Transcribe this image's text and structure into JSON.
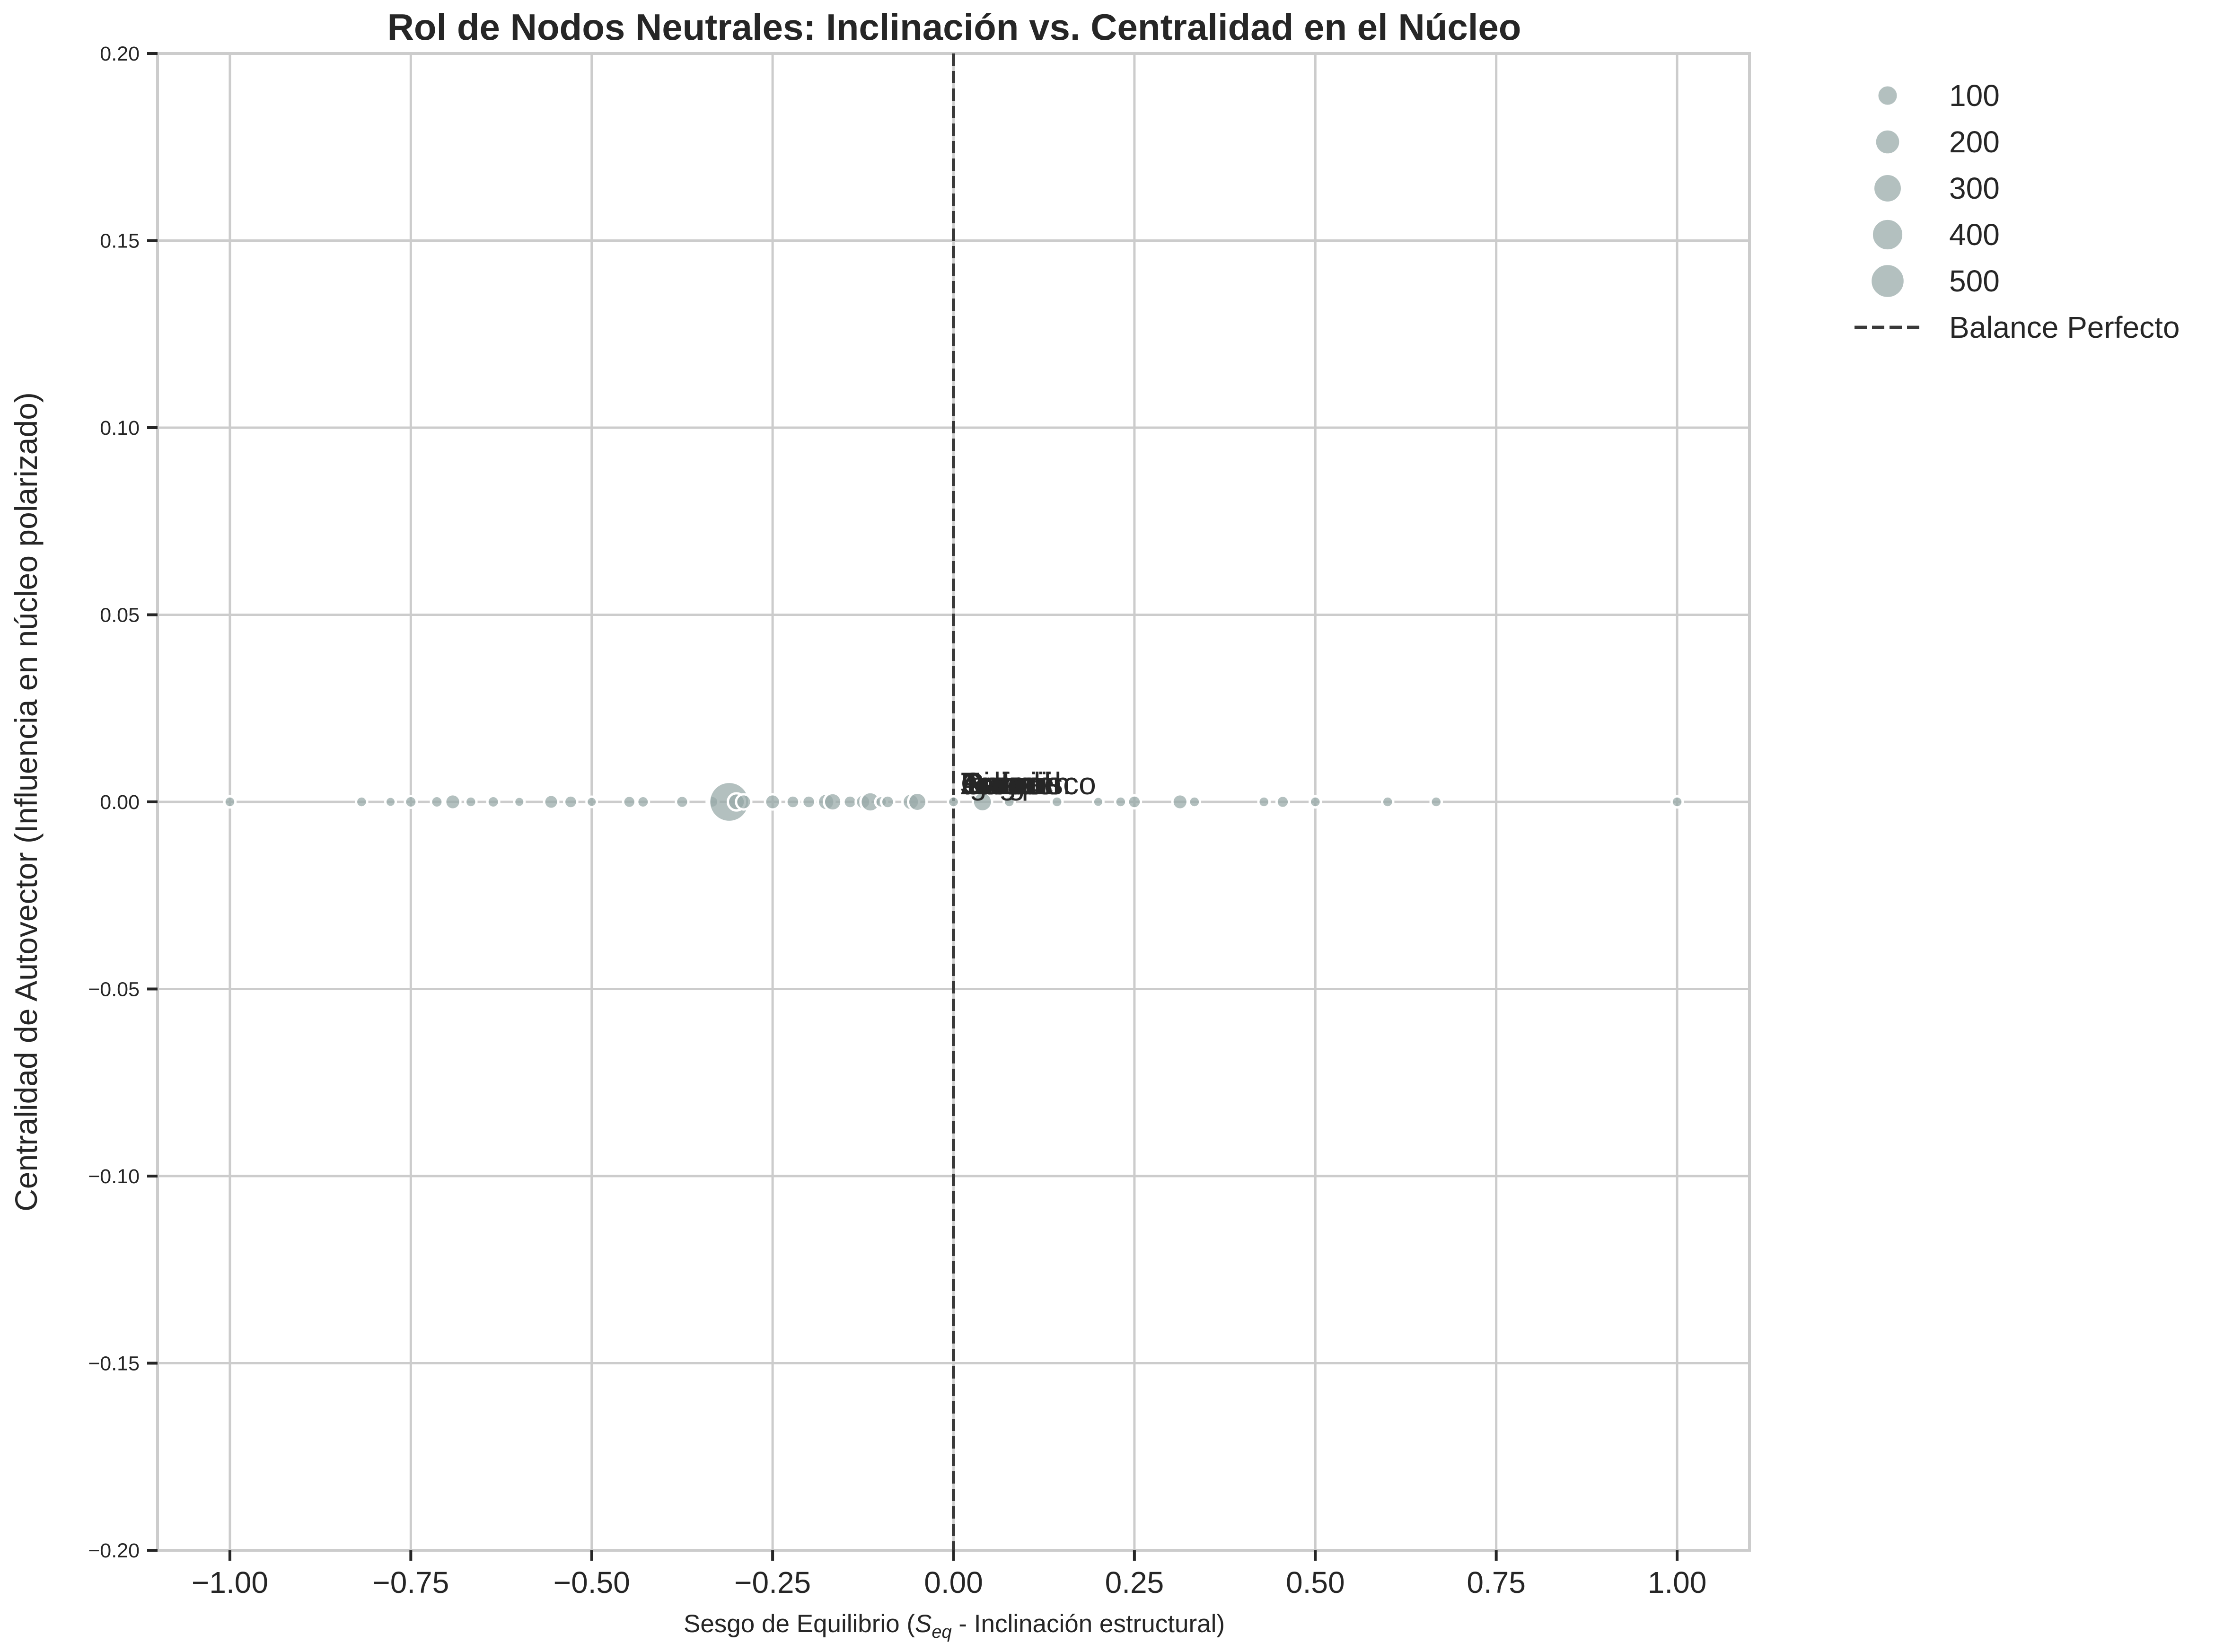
{
  "chart_data": {
    "type": "scatter",
    "title": "Rol de Nodos Neutrales: Inclinación vs. Centralidad en el Núcleo",
    "xlabel_parts": [
      "Sesgo de Equilibrio (",
      "S",
      "eq",
      " - Inclinación estructural)"
    ],
    "ylabel": "Centralidad de Autovector (Influencia en núcleo polarizado)",
    "xlim": [
      -1.1,
      1.1
    ],
    "ylim": [
      -0.2,
      0.2
    ],
    "xticks": [
      -1.0,
      -0.75,
      -0.5,
      -0.25,
      0.0,
      0.25,
      0.5,
      0.75,
      1.0
    ],
    "xtick_labels": [
      "−1.00",
      "−0.75",
      "−0.50",
      "−0.25",
      "0.00",
      "0.25",
      "0.50",
      "0.75",
      "1.00"
    ],
    "yticks": [
      -0.2,
      -0.15,
      -0.1,
      -0.05,
      0.0,
      0.05,
      0.1,
      0.15,
      0.2
    ],
    "ytick_labels": [
      "−0.20",
      "−0.15",
      "−0.10",
      "−0.05",
      "0.00",
      "0.05",
      "0.10",
      "0.15",
      "0.20"
    ],
    "grid": true,
    "legend_placement": "outside top-right",
    "size_legend": [
      {
        "label": "100",
        "value": 100
      },
      {
        "label": "200",
        "value": 200
      },
      {
        "label": "300",
        "value": 300
      },
      {
        "label": "400",
        "value": 400
      },
      {
        "label": "500",
        "value": 500
      }
    ],
    "reference_line": {
      "x": 0.0,
      "label": "Balance Perfecto",
      "style": "dashed",
      "color": "#3a3a3a"
    },
    "marker_color": "#9aabaa",
    "marker_edge": "#ffffff",
    "points": [
      {
        "x": -1.0,
        "y": 0.0,
        "size": 40
      },
      {
        "x": -0.818,
        "y": 0.0,
        "size": 40
      },
      {
        "x": -0.778,
        "y": 0.0,
        "size": 35
      },
      {
        "x": -0.75,
        "y": 0.0,
        "size": 45
      },
      {
        "x": -0.714,
        "y": 0.0,
        "size": 45
      },
      {
        "x": -0.692,
        "y": 0.0,
        "size": 75
      },
      {
        "x": -0.667,
        "y": 0.0,
        "size": 40
      },
      {
        "x": -0.636,
        "y": 0.0,
        "size": 45
      },
      {
        "x": -0.6,
        "y": 0.0,
        "size": 35
      },
      {
        "x": -0.556,
        "y": 0.0,
        "size": 65
      },
      {
        "x": -0.529,
        "y": 0.0,
        "size": 55
      },
      {
        "x": -0.5,
        "y": 0.0,
        "size": 35
      },
      {
        "x": -0.448,
        "y": 0.0,
        "size": 50
      },
      {
        "x": -0.429,
        "y": 0.0,
        "size": 45
      },
      {
        "x": -0.375,
        "y": 0.0,
        "size": 50
      },
      {
        "x": -0.333,
        "y": 0.0,
        "size": 45
      },
      {
        "x": -0.31,
        "y": 0.0,
        "size": 520
      },
      {
        "x": -0.3,
        "y": 0.0,
        "size": 95
      },
      {
        "x": -0.29,
        "y": 0.0,
        "size": 75
      },
      {
        "x": -0.25,
        "y": 0.0,
        "size": 75
      },
      {
        "x": -0.222,
        "y": 0.0,
        "size": 55
      },
      {
        "x": -0.2,
        "y": 0.0,
        "size": 55
      },
      {
        "x": -0.176,
        "y": 0.0,
        "size": 90
      },
      {
        "x": -0.167,
        "y": 0.0,
        "size": 100
      },
      {
        "x": -0.143,
        "y": 0.0,
        "size": 55
      },
      {
        "x": -0.125,
        "y": 0.0,
        "size": 70
      },
      {
        "x": -0.115,
        "y": 0.0,
        "size": 125
      },
      {
        "x": -0.1,
        "y": 0.0,
        "size": 45
      },
      {
        "x": -0.091,
        "y": 0.0,
        "size": 55
      },
      {
        "x": -0.059,
        "y": 0.0,
        "size": 90
      },
      {
        "x": -0.05,
        "y": 0.0,
        "size": 110
      },
      {
        "x": 0.0,
        "y": 0.0,
        "size": 40
      },
      {
        "x": 0.04,
        "y": 0.0,
        "size": 120
      },
      {
        "x": 0.077,
        "y": 0.0,
        "size": 40
      },
      {
        "x": 0.143,
        "y": 0.0,
        "size": 40
      },
      {
        "x": 0.2,
        "y": 0.0,
        "size": 35
      },
      {
        "x": 0.231,
        "y": 0.0,
        "size": 40
      },
      {
        "x": 0.25,
        "y": 0.0,
        "size": 55
      },
      {
        "x": 0.313,
        "y": 0.0,
        "size": 75
      },
      {
        "x": 0.333,
        "y": 0.0,
        "size": 40
      },
      {
        "x": 0.429,
        "y": 0.0,
        "size": 40
      },
      {
        "x": 0.455,
        "y": 0.0,
        "size": 50
      },
      {
        "x": 0.5,
        "y": 0.0,
        "size": 40
      },
      {
        "x": 0.6,
        "y": 0.0,
        "size": 40
      },
      {
        "x": 0.667,
        "y": 0.0,
        "size": 40
      },
      {
        "x": 1.0,
        "y": 0.0,
        "size": 40
      }
    ],
    "annotations": [
      {
        "text": "Francisco",
        "x": 0.01,
        "y": 0.002
      },
      {
        "text": "Julian",
        "x": 0.01,
        "y": 0.002
      },
      {
        "text": "Tomas",
        "x": 0.01,
        "y": 0.002
      },
      {
        "text": "Ignacio",
        "x": 0.01,
        "y": 0.002
      },
      {
        "text": "Diego",
        "x": 0.01,
        "y": 0.002
      },
      {
        "text": "Gabriel",
        "x": 0.01,
        "y": 0.002
      },
      {
        "text": "Joaquin",
        "x": 0.01,
        "y": 0.002
      },
      {
        "text": "Angel",
        "x": 0.01,
        "y": 0.002
      },
      {
        "text": "Rafael",
        "x": 0.01,
        "y": 0.002
      }
    ]
  }
}
